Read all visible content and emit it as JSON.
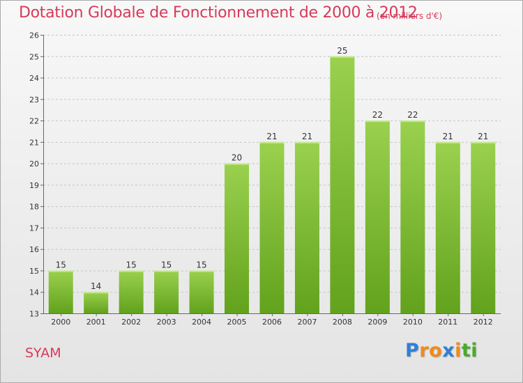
{
  "header": {
    "title": "Dotation Globale de Fonctionnement de 2000 à 2012",
    "unit": "(en milliers d'€)"
  },
  "footer": {
    "commune": "SYAM",
    "logo_letters": [
      "P",
      "r",
      "o",
      "x",
      "i",
      "t",
      "i"
    ],
    "logo_colors": [
      "#2f7fd6",
      "#f08a1c",
      "#f08a1c",
      "#2f7fd6",
      "#f08a1c",
      "#4aaa2a",
      "#4aaa2a"
    ]
  },
  "colors": {
    "title": "#d63a5a",
    "bar_light": "#9ad14f",
    "bar_dark": "#62a21c"
  },
  "chart_data": {
    "type": "bar",
    "categories": [
      "2000",
      "2001",
      "2002",
      "2003",
      "2004",
      "2005",
      "2006",
      "2007",
      "2008",
      "2009",
      "2010",
      "2011",
      "2012"
    ],
    "values": [
      15,
      14,
      15,
      15,
      15,
      20,
      21,
      21,
      25,
      22,
      22,
      21,
      21
    ],
    "data_labels": [
      "15",
      "14",
      "15",
      "15",
      "15",
      "20",
      "21",
      "21",
      "25",
      "22",
      "22",
      "21",
      "21"
    ],
    "ylim": [
      13,
      26
    ],
    "yticks": [
      13,
      14,
      15,
      16,
      17,
      18,
      19,
      20,
      21,
      22,
      23,
      24,
      25,
      26
    ],
    "grid": "horizontal dashed",
    "legend": "none"
  }
}
